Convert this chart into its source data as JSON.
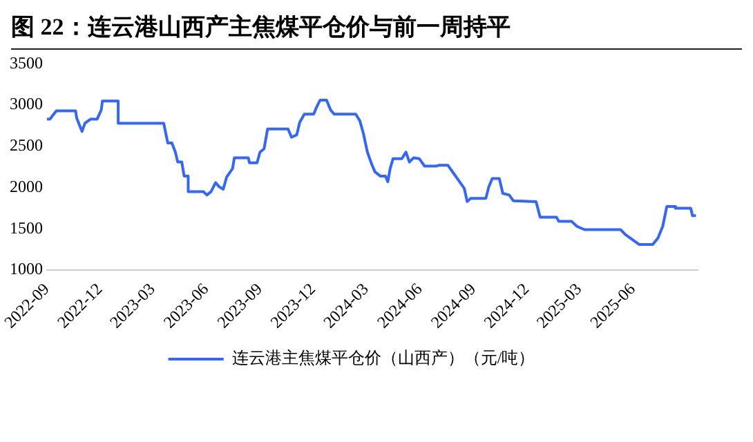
{
  "chart_data": {
    "type": "line",
    "title": "图 22：连云港山西产主焦煤平仓价与前一周持平",
    "x": [
      "2022-09-01",
      "2022-09-06",
      "2022-09-17",
      "2022-10-20",
      "2022-10-22",
      "2022-10-31",
      "2022-11-05",
      "2022-11-15",
      "2022-11-26",
      "2022-12-03",
      "2022-12-05",
      "2023-01-01",
      "2023-01-01",
      "2023-03-20",
      "2023-03-27",
      "2023-04-03",
      "2023-04-09",
      "2023-04-13",
      "2023-04-20",
      "2023-04-24",
      "2023-05-01",
      "2023-05-01",
      "2023-05-27",
      "2023-06-02",
      "2023-06-09",
      "2023-06-17",
      "2023-06-23",
      "2023-06-30",
      "2023-07-06",
      "2023-07-16",
      "2023-07-19",
      "2023-08-12",
      "2023-08-14",
      "2023-08-27",
      "2023-09-01",
      "2023-09-08",
      "2023-09-14",
      "2023-10-19",
      "2023-10-25",
      "2023-11-03",
      "2023-11-08",
      "2023-11-16",
      "2023-12-02",
      "2023-12-06",
      "2023-12-13",
      "2023-12-24",
      "2023-12-31",
      "2024-01-06",
      "2024-02-12",
      "2024-02-19",
      "2024-02-25",
      "2024-03-03",
      "2024-03-10",
      "2024-03-16",
      "2024-03-25",
      "2024-04-03",
      "2024-04-07",
      "2024-04-11",
      "2024-04-16",
      "2024-05-01",
      "2024-05-08",
      "2024-05-14",
      "2024-05-21",
      "2024-05-31",
      "2024-06-09",
      "2024-06-29",
      "2024-07-03",
      "2024-07-19",
      "2024-07-30",
      "2024-08-09",
      "2024-08-16",
      "2024-08-21",
      "2024-08-27",
      "2024-09-22",
      "2024-09-27",
      "2024-10-03",
      "2024-10-15",
      "2024-10-21",
      "2024-11-01",
      "2024-11-08",
      "2024-12-17",
      "2024-12-24",
      "2025-01-21",
      "2025-01-25",
      "2025-02-16",
      "2025-02-25",
      "2025-03-10",
      "2025-05-11",
      "2025-05-19",
      "2025-06-02",
      "2025-06-12",
      "2025-07-05",
      "2025-07-14",
      "2025-07-22",
      "2025-07-29",
      "2025-08-11",
      "2025-08-13",
      "2025-09-08",
      "2025-09-11",
      "2025-09-17"
    ],
    "series": [
      {
        "name": "连云港主焦煤平仓价（山西产）（元/吨）",
        "color": "#3366ff",
        "values": [
          2830,
          2830,
          2930,
          2930,
          2840,
          2680,
          2780,
          2830,
          2830,
          2940,
          3050,
          3050,
          2780,
          2780,
          2540,
          2540,
          2430,
          2310,
          2310,
          2140,
          2140,
          1950,
          1950,
          1910,
          1950,
          2060,
          2010,
          1980,
          2130,
          2230,
          2360,
          2360,
          2300,
          2300,
          2430,
          2470,
          2710,
          2710,
          2610,
          2640,
          2790,
          2890,
          2890,
          2960,
          3060,
          3060,
          2940,
          2890,
          2890,
          2810,
          2660,
          2430,
          2290,
          2190,
          2140,
          2140,
          2070,
          2230,
          2350,
          2350,
          2430,
          2310,
          2360,
          2350,
          2260,
          2260,
          2270,
          2270,
          2160,
          2060,
          1990,
          1830,
          1870,
          1870,
          2010,
          2110,
          2110,
          1930,
          1910,
          1840,
          1830,
          1640,
          1640,
          1590,
          1590,
          1530,
          1490,
          1490,
          1430,
          1360,
          1310,
          1310,
          1390,
          1530,
          1770,
          1770,
          1750,
          1750,
          1660,
          1660
        ]
      }
    ],
    "xlim": [
      "2022-09-01",
      "2025-09-20"
    ],
    "xticks": [
      {
        "value": "2022-09-01",
        "label": "2022-09"
      },
      {
        "value": "2022-12-01",
        "label": "2022-12"
      },
      {
        "value": "2023-03-01",
        "label": "2023-03"
      },
      {
        "value": "2023-06-01",
        "label": "2023-06"
      },
      {
        "value": "2023-09-01",
        "label": "2023-09"
      },
      {
        "value": "2023-12-01",
        "label": "2023-12"
      },
      {
        "value": "2024-03-01",
        "label": "2024-03"
      },
      {
        "value": "2024-06-01",
        "label": "2024-06"
      },
      {
        "value": "2024-09-01",
        "label": "2024-09"
      },
      {
        "value": "2024-12-01",
        "label": "2024-12"
      },
      {
        "value": "2025-03-01",
        "label": "2025-03"
      },
      {
        "value": "2025-06-01",
        "label": "2025-06"
      }
    ],
    "ylim": [
      1000,
      3500
    ],
    "yticks": [
      1000,
      1500,
      2000,
      2500,
      3000,
      3500
    ],
    "grid": false,
    "legend": "bottom",
    "marker": "none",
    "line_style": "solid"
  }
}
